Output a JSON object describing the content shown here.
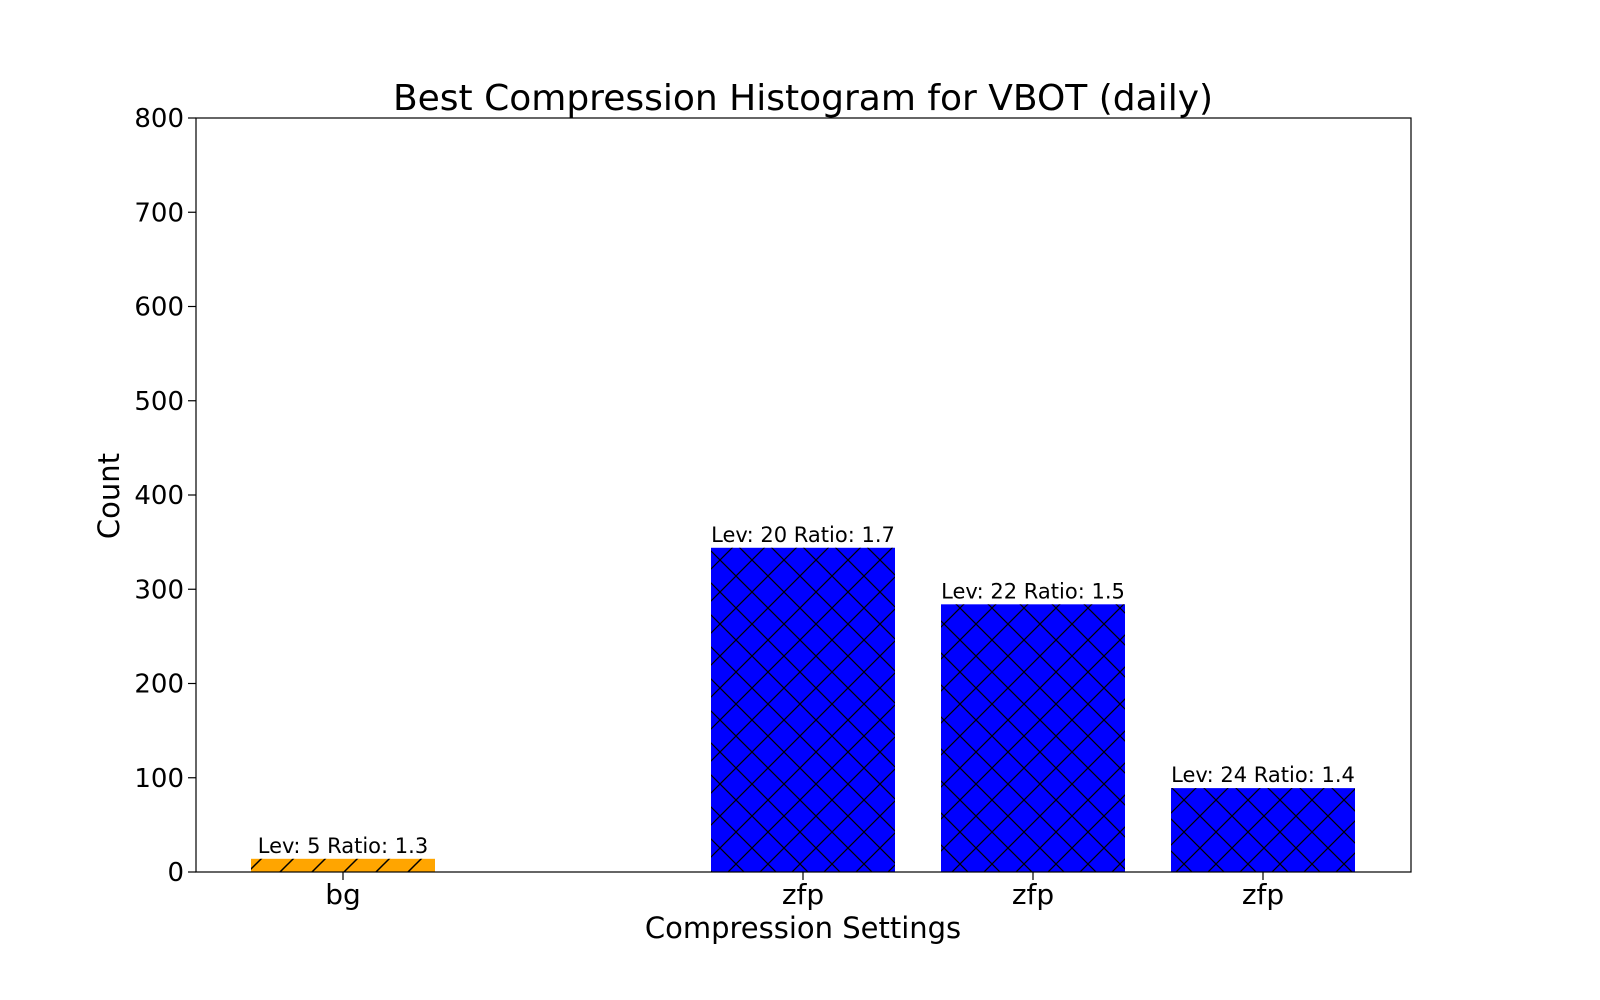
{
  "chart_data": {
    "type": "bar",
    "title": "Best Compression Histogram for VBOT (daily)",
    "xlabel": "Compression Settings",
    "ylabel": "Count",
    "ylim": [
      0,
      800
    ],
    "yticks": [
      0,
      100,
      200,
      300,
      400,
      500,
      600,
      700,
      800
    ],
    "grid": false,
    "categories": [
      "bg",
      "",
      "zfp",
      "zfp",
      "zfp"
    ],
    "bars": [
      {
        "category": "bg",
        "value": 14,
        "label": "Lev: 5 Ratio: 1.3",
        "color": "#FFA500",
        "hatch": "diagonal"
      },
      {
        "category": "zfp",
        "value": 344,
        "label": "Lev: 20 Ratio: 1.7",
        "color": "#0000FF",
        "hatch": "cross"
      },
      {
        "category": "zfp",
        "value": 284,
        "label": "Lev: 22 Ratio: 1.5",
        "color": "#0000FF",
        "hatch": "cross"
      },
      {
        "category": "zfp",
        "value": 89,
        "label": "Lev: 24 Ratio: 1.4",
        "color": "#0000FF",
        "hatch": "cross"
      }
    ]
  }
}
